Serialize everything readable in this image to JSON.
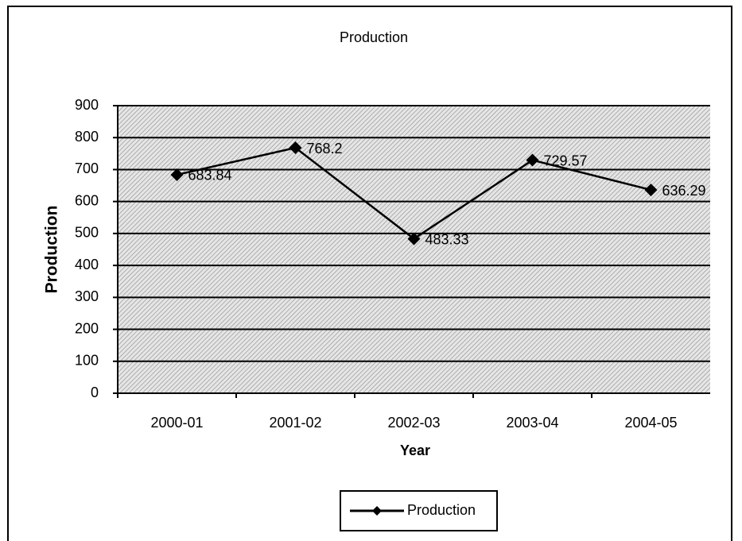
{
  "chart_data": {
    "type": "line",
    "title": "Production",
    "x_label": "Year",
    "y_label": "Production",
    "categories": [
      "2000-01",
      "2001-02",
      "2002-03",
      "2003-04",
      "2004-05"
    ],
    "series": [
      {
        "name": "Production",
        "color": "#000000",
        "values": [
          683.84,
          768.2,
          483.33,
          729.57,
          636.29
        ]
      }
    ],
    "ylim": [
      0,
      900
    ],
    "yticks": [
      0,
      100,
      200,
      300,
      400,
      500,
      600,
      700,
      800,
      900
    ],
    "grid": true,
    "legend": "bottom"
  }
}
